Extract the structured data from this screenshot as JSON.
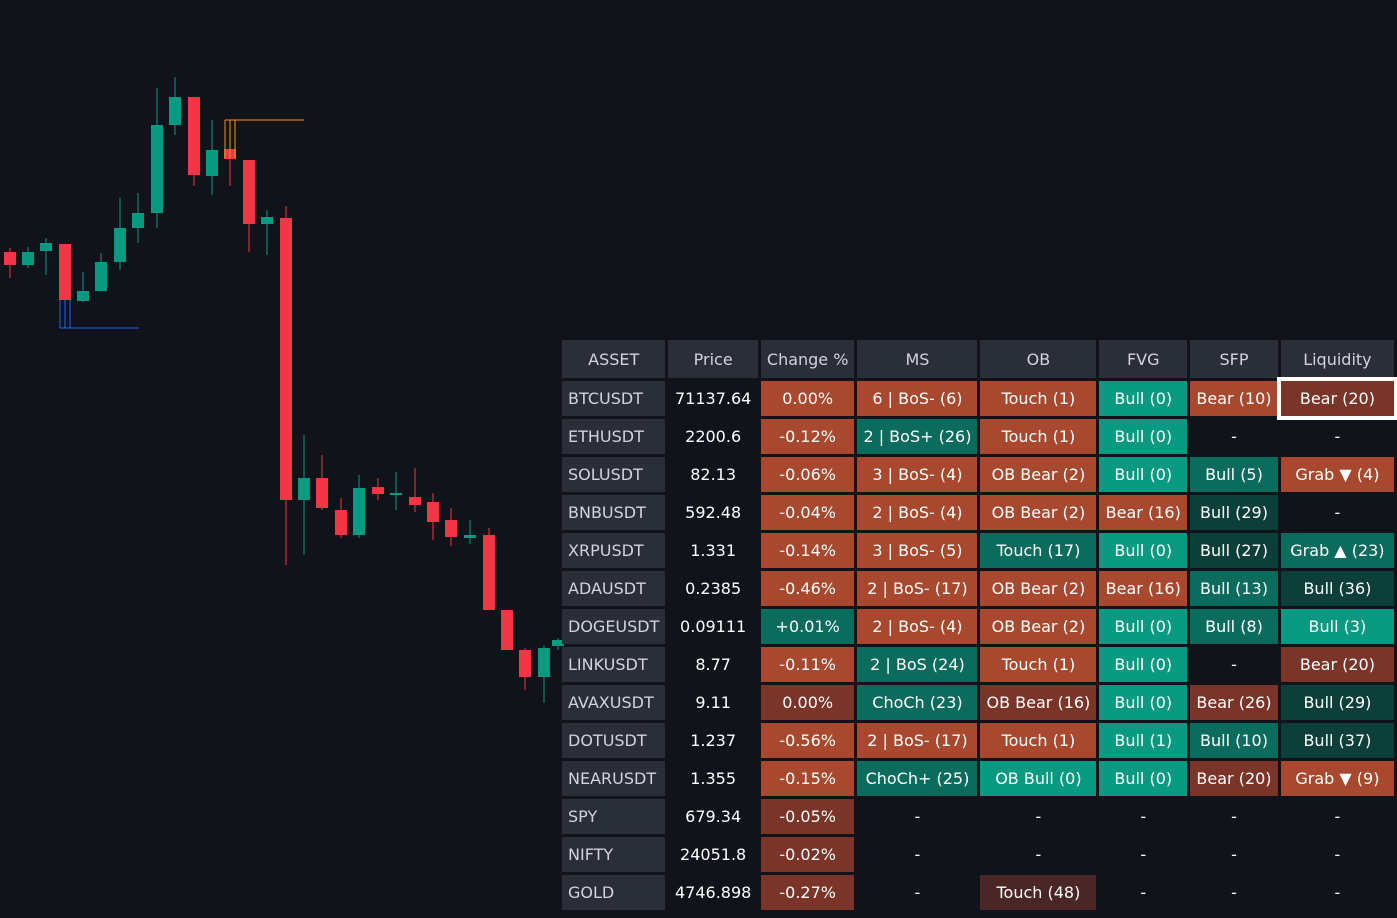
{
  "table": {
    "headers": [
      "ASSET",
      "Price",
      "Change %",
      "MS",
      "OB",
      "FVG",
      "SFP",
      "Liquidity"
    ],
    "rows": [
      {
        "asset": "BTCUSDT",
        "price": "71137.64",
        "change": "0.00%",
        "ms": "6 | BoS- (6)",
        "ob": "Touch (1)",
        "fvg": "Bull (0)",
        "sfp": "Bear (10)",
        "liq": "Bear (20)"
      },
      {
        "asset": "ETHUSDT",
        "price": "2200.6",
        "change": "-0.12%",
        "ms": "2 | BoS+ (26)",
        "ob": "Touch (1)",
        "fvg": "Bull (0)",
        "sfp": "-",
        "liq": "-"
      },
      {
        "asset": "SOLUSDT",
        "price": "82.13",
        "change": "-0.06%",
        "ms": "3 | BoS- (4)",
        "ob": "OB Bear (2)",
        "fvg": "Bull (0)",
        "sfp": "Bull (5)",
        "liq": "Grab ▼ (4)"
      },
      {
        "asset": "BNBUSDT",
        "price": "592.48",
        "change": "-0.04%",
        "ms": "2 | BoS- (4)",
        "ob": "OB Bear (2)",
        "fvg": "Bear (16)",
        "sfp": "Bull (29)",
        "liq": "-"
      },
      {
        "asset": "XRPUSDT",
        "price": "1.331",
        "change": "-0.14%",
        "ms": "3 | BoS- (5)",
        "ob": "Touch (17)",
        "fvg": "Bull (0)",
        "sfp": "Bull (27)",
        "liq": "Grab ▲ (23)"
      },
      {
        "asset": "ADAUSDT",
        "price": "0.2385",
        "change": "-0.46%",
        "ms": "2 | BoS- (17)",
        "ob": "OB Bear (2)",
        "fvg": "Bear (16)",
        "sfp": "Bull (13)",
        "liq": "Bull (36)"
      },
      {
        "asset": "DOGEUSDT",
        "price": "0.09111",
        "change": "+0.01%",
        "ms": "2 | BoS- (4)",
        "ob": "OB Bear (2)",
        "fvg": "Bull (0)",
        "sfp": "Bull (8)",
        "liq": "Bull (3)"
      },
      {
        "asset": "LINKUSDT",
        "price": "8.77",
        "change": "-0.11%",
        "ms": "2 | BoS (24)",
        "ob": "Touch (1)",
        "fvg": "Bull (0)",
        "sfp": "-",
        "liq": "Bear (20)"
      },
      {
        "asset": "AVAXUSDT",
        "price": "9.11",
        "change": "0.00%",
        "ms": "ChoCh (23)",
        "ob": "OB Bear (16)",
        "fvg": "Bull (0)",
        "sfp": "Bear (26)",
        "liq": "Bull (29)"
      },
      {
        "asset": "DOTUSDT",
        "price": "1.237",
        "change": "-0.56%",
        "ms": "2 | BoS- (17)",
        "ob": "Touch (1)",
        "fvg": "Bull (1)",
        "sfp": "Bull (10)",
        "liq": "Bull (37)"
      },
      {
        "asset": "NEARUSDT",
        "price": "1.355",
        "change": "-0.15%",
        "ms": "ChoCh+ (25)",
        "ob": "OB Bull (0)",
        "fvg": "Bull (0)",
        "sfp": "Bear (20)",
        "liq": "Grab ▼ (9)"
      },
      {
        "asset": "SPY",
        "price": "679.34",
        "change": "-0.05%",
        "ms": "-",
        "ob": "-",
        "fvg": "-",
        "sfp": "-",
        "liq": "-"
      },
      {
        "asset": "NIFTY",
        "price": "24051.8",
        "change": "-0.02%",
        "ms": "-",
        "ob": "-",
        "fvg": "-",
        "sfp": "-",
        "liq": "-"
      },
      {
        "asset": "GOLD",
        "price": "4746.898",
        "change": "-0.27%",
        "ms": "-",
        "ob": "Touch (48)",
        "fvg": "-",
        "sfp": "-",
        "liq": "-"
      }
    ]
  },
  "colors": {
    "background": "#10131a",
    "candle_up": "#089981",
    "candle_down": "#f23645",
    "orange_marker": "#f7931a",
    "blue_marker": "#2962ff"
  }
}
